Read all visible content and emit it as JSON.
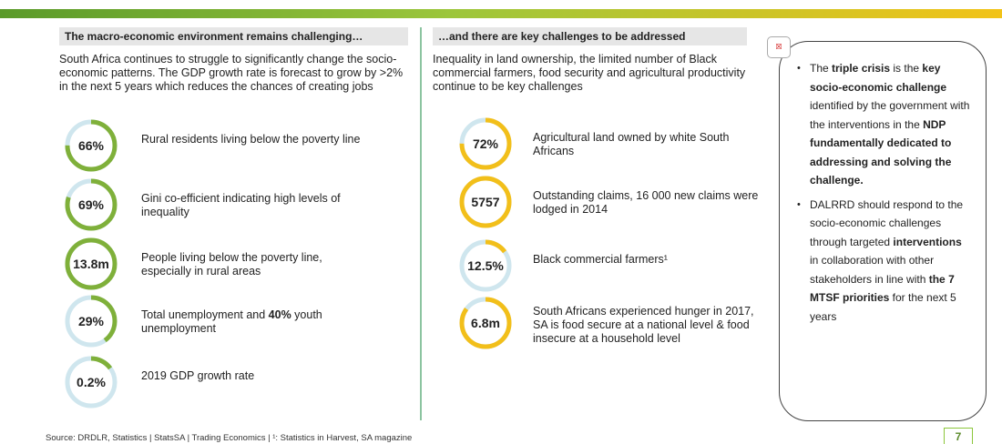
{
  "left": {
    "heading": "The macro-economic environment remains challenging…",
    "intro": "South Africa continues to struggle to significantly change the socio-economic patterns. The GDP growth rate is forecast to grow by >2% in the next 5 years which reduces the chances of creating jobs",
    "items": [
      {
        "value": "66%",
        "label": [
          {
            "text": "Rural residents living below the poverty line"
          }
        ]
      },
      {
        "value": "69%",
        "label": [
          {
            "text": "Gini co-efficient indicating high levels of inequality"
          }
        ]
      },
      {
        "value": "13.8m",
        "label": [
          {
            "text": "People living below the poverty line, especially in rural areas"
          }
        ]
      },
      {
        "value": "29%",
        "label": [
          {
            "text": "Total unemployment and "
          },
          {
            "text": "40%",
            "bold": true
          },
          {
            "text": " youth unemployment"
          }
        ]
      },
      {
        "value": "0.2%",
        "label": [
          {
            "text": "2019 GDP growth rate"
          }
        ]
      }
    ]
  },
  "middle": {
    "heading": "…and there are key challenges to be addressed",
    "intro": "Inequality in land ownership, the limited number of Black commercial farmers, food security and agricultural productivity continue to be key challenges",
    "items": [
      {
        "value": "72%",
        "label": [
          {
            "text": "Agricultural land owned by white South Africans"
          }
        ]
      },
      {
        "value": "5757",
        "label": [
          {
            "text": "Outstanding claims, 16 000 new claims were lodged in 2014"
          }
        ]
      },
      {
        "value": "12.5%",
        "label": [
          {
            "text": "Black commercial farmers¹"
          }
        ]
      },
      {
        "value": "6.8m",
        "label": [
          {
            "text": "South Africans experienced hunger in 2017, SA is food secure at a national level & food insecure at a household level"
          }
        ]
      }
    ]
  },
  "callout": {
    "bullets": [
      [
        {
          "text": "The "
        },
        {
          "text": "triple crisis",
          "bold": true
        },
        {
          "text": " is the "
        },
        {
          "text": "key socio-economic challenge",
          "bold": true
        },
        {
          "text": " identified by the government with the interventions in the "
        },
        {
          "text": "NDP fundamentally dedicated to addressing and solving the challenge.",
          "bold": true
        }
      ],
      [
        {
          "text": "DALRRD should respond to the socio-economic challenges through targeted "
        },
        {
          "text": "interventions",
          "bold": true
        },
        {
          "text": " in collaboration with other stakeholders in line with "
        },
        {
          "text": "the 7 MTSF priorities",
          "bold": true
        },
        {
          "text": " for the next 5 years"
        }
      ]
    ]
  },
  "footer": {
    "source": "Source: DRDLR, Statistics | StatsSA | Trading Economics | ¹: Statistics in Harvest, SA magazine",
    "page": "7"
  }
}
